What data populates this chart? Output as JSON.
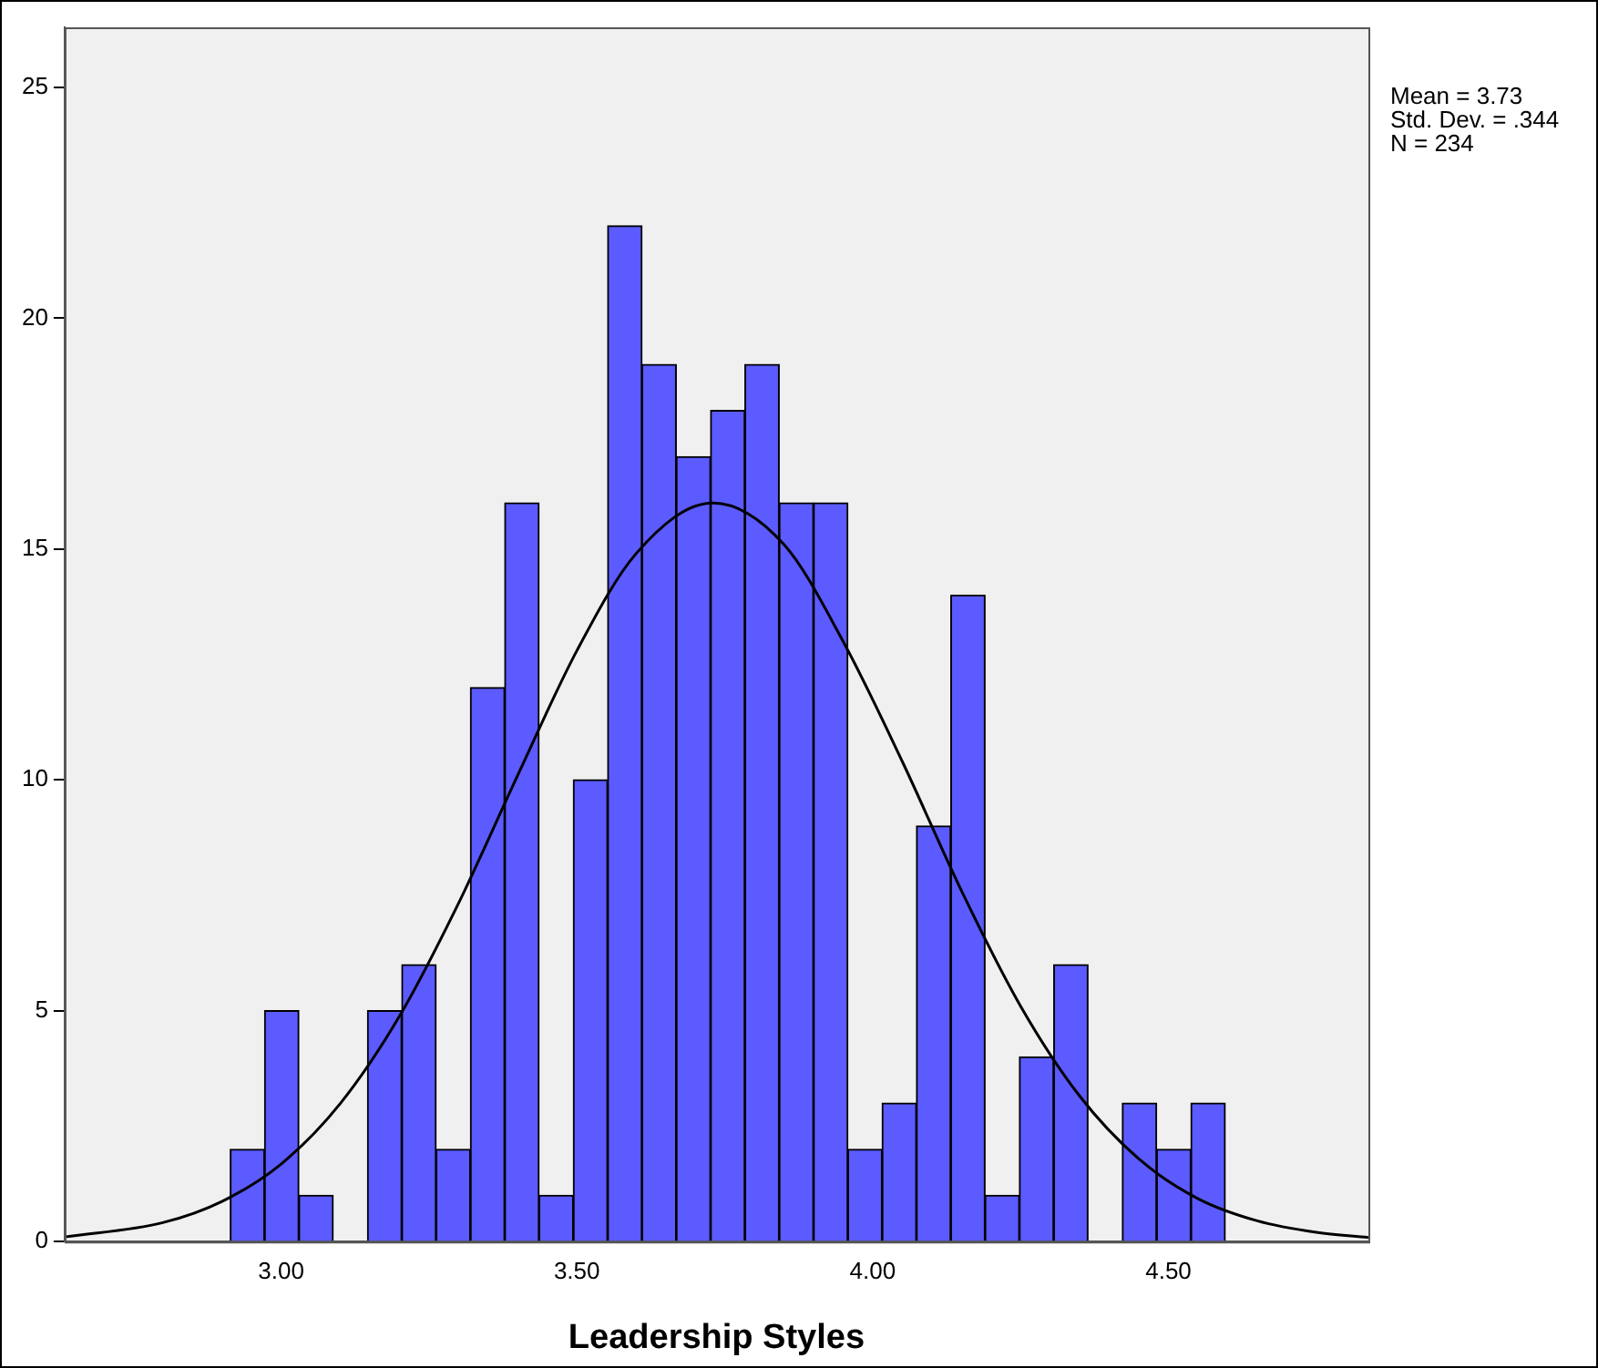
{
  "chart_data": {
    "type": "histogram",
    "xlabel": "Leadership Styles",
    "bins": [
      2.914,
      2.972,
      3.03,
      3.088,
      3.146,
      3.204,
      3.262,
      3.32,
      3.378,
      3.436,
      3.494,
      3.552,
      3.61,
      3.668,
      3.726,
      3.784,
      3.842,
      3.9,
      3.958,
      4.016,
      4.074,
      4.132,
      4.19,
      4.248,
      4.306,
      4.364,
      4.422,
      4.48,
      4.538,
      4.596
    ],
    "values": [
      2,
      5,
      1,
      0,
      5,
      6,
      2,
      12,
      16,
      1,
      10,
      22,
      19,
      17,
      18,
      19,
      16,
      16,
      2,
      3,
      9,
      14,
      1,
      4,
      6,
      0,
      3,
      2,
      3
    ],
    "color": "#5b5bff",
    "series": [
      {
        "type": "line",
        "color": "#000000",
        "x": [
          2.634,
          2.8,
          2.9,
          3.0,
          3.1,
          3.2,
          3.3,
          3.4,
          3.5,
          3.6,
          3.73,
          3.85,
          3.95,
          4.05,
          4.15,
          4.25,
          4.35,
          4.45,
          4.55,
          4.65,
          4.75,
          4.838
        ],
        "values": [
          0.1,
          0.41,
          0.87,
          1.68,
          2.99,
          4.88,
          7.33,
          10.1,
          12.8,
          14.9,
          16,
          15.1,
          13.0,
          10.4,
          7.6,
          5.1,
          3.15,
          1.79,
          0.93,
          0.45,
          0.2,
          0.09
        ]
      }
    ],
    "xlim": [
      2.634,
      4.838
    ],
    "ylim": [
      0,
      26.3
    ],
    "xticks": [
      {
        "value": 3,
        "label": "3.00"
      },
      {
        "value": 3.5,
        "label": "3.50"
      },
      {
        "value": 4,
        "label": "4.00"
      },
      {
        "value": 4.5,
        "label": "4.50"
      }
    ],
    "yticks": [
      0,
      5,
      10,
      15,
      20,
      25
    ],
    "grid": false,
    "legend": false,
    "marker": "none",
    "line_style": "solid",
    "annotations": [
      "Mean = 3.73",
      "Std. Dev. = .344",
      "N = 234"
    ]
  }
}
